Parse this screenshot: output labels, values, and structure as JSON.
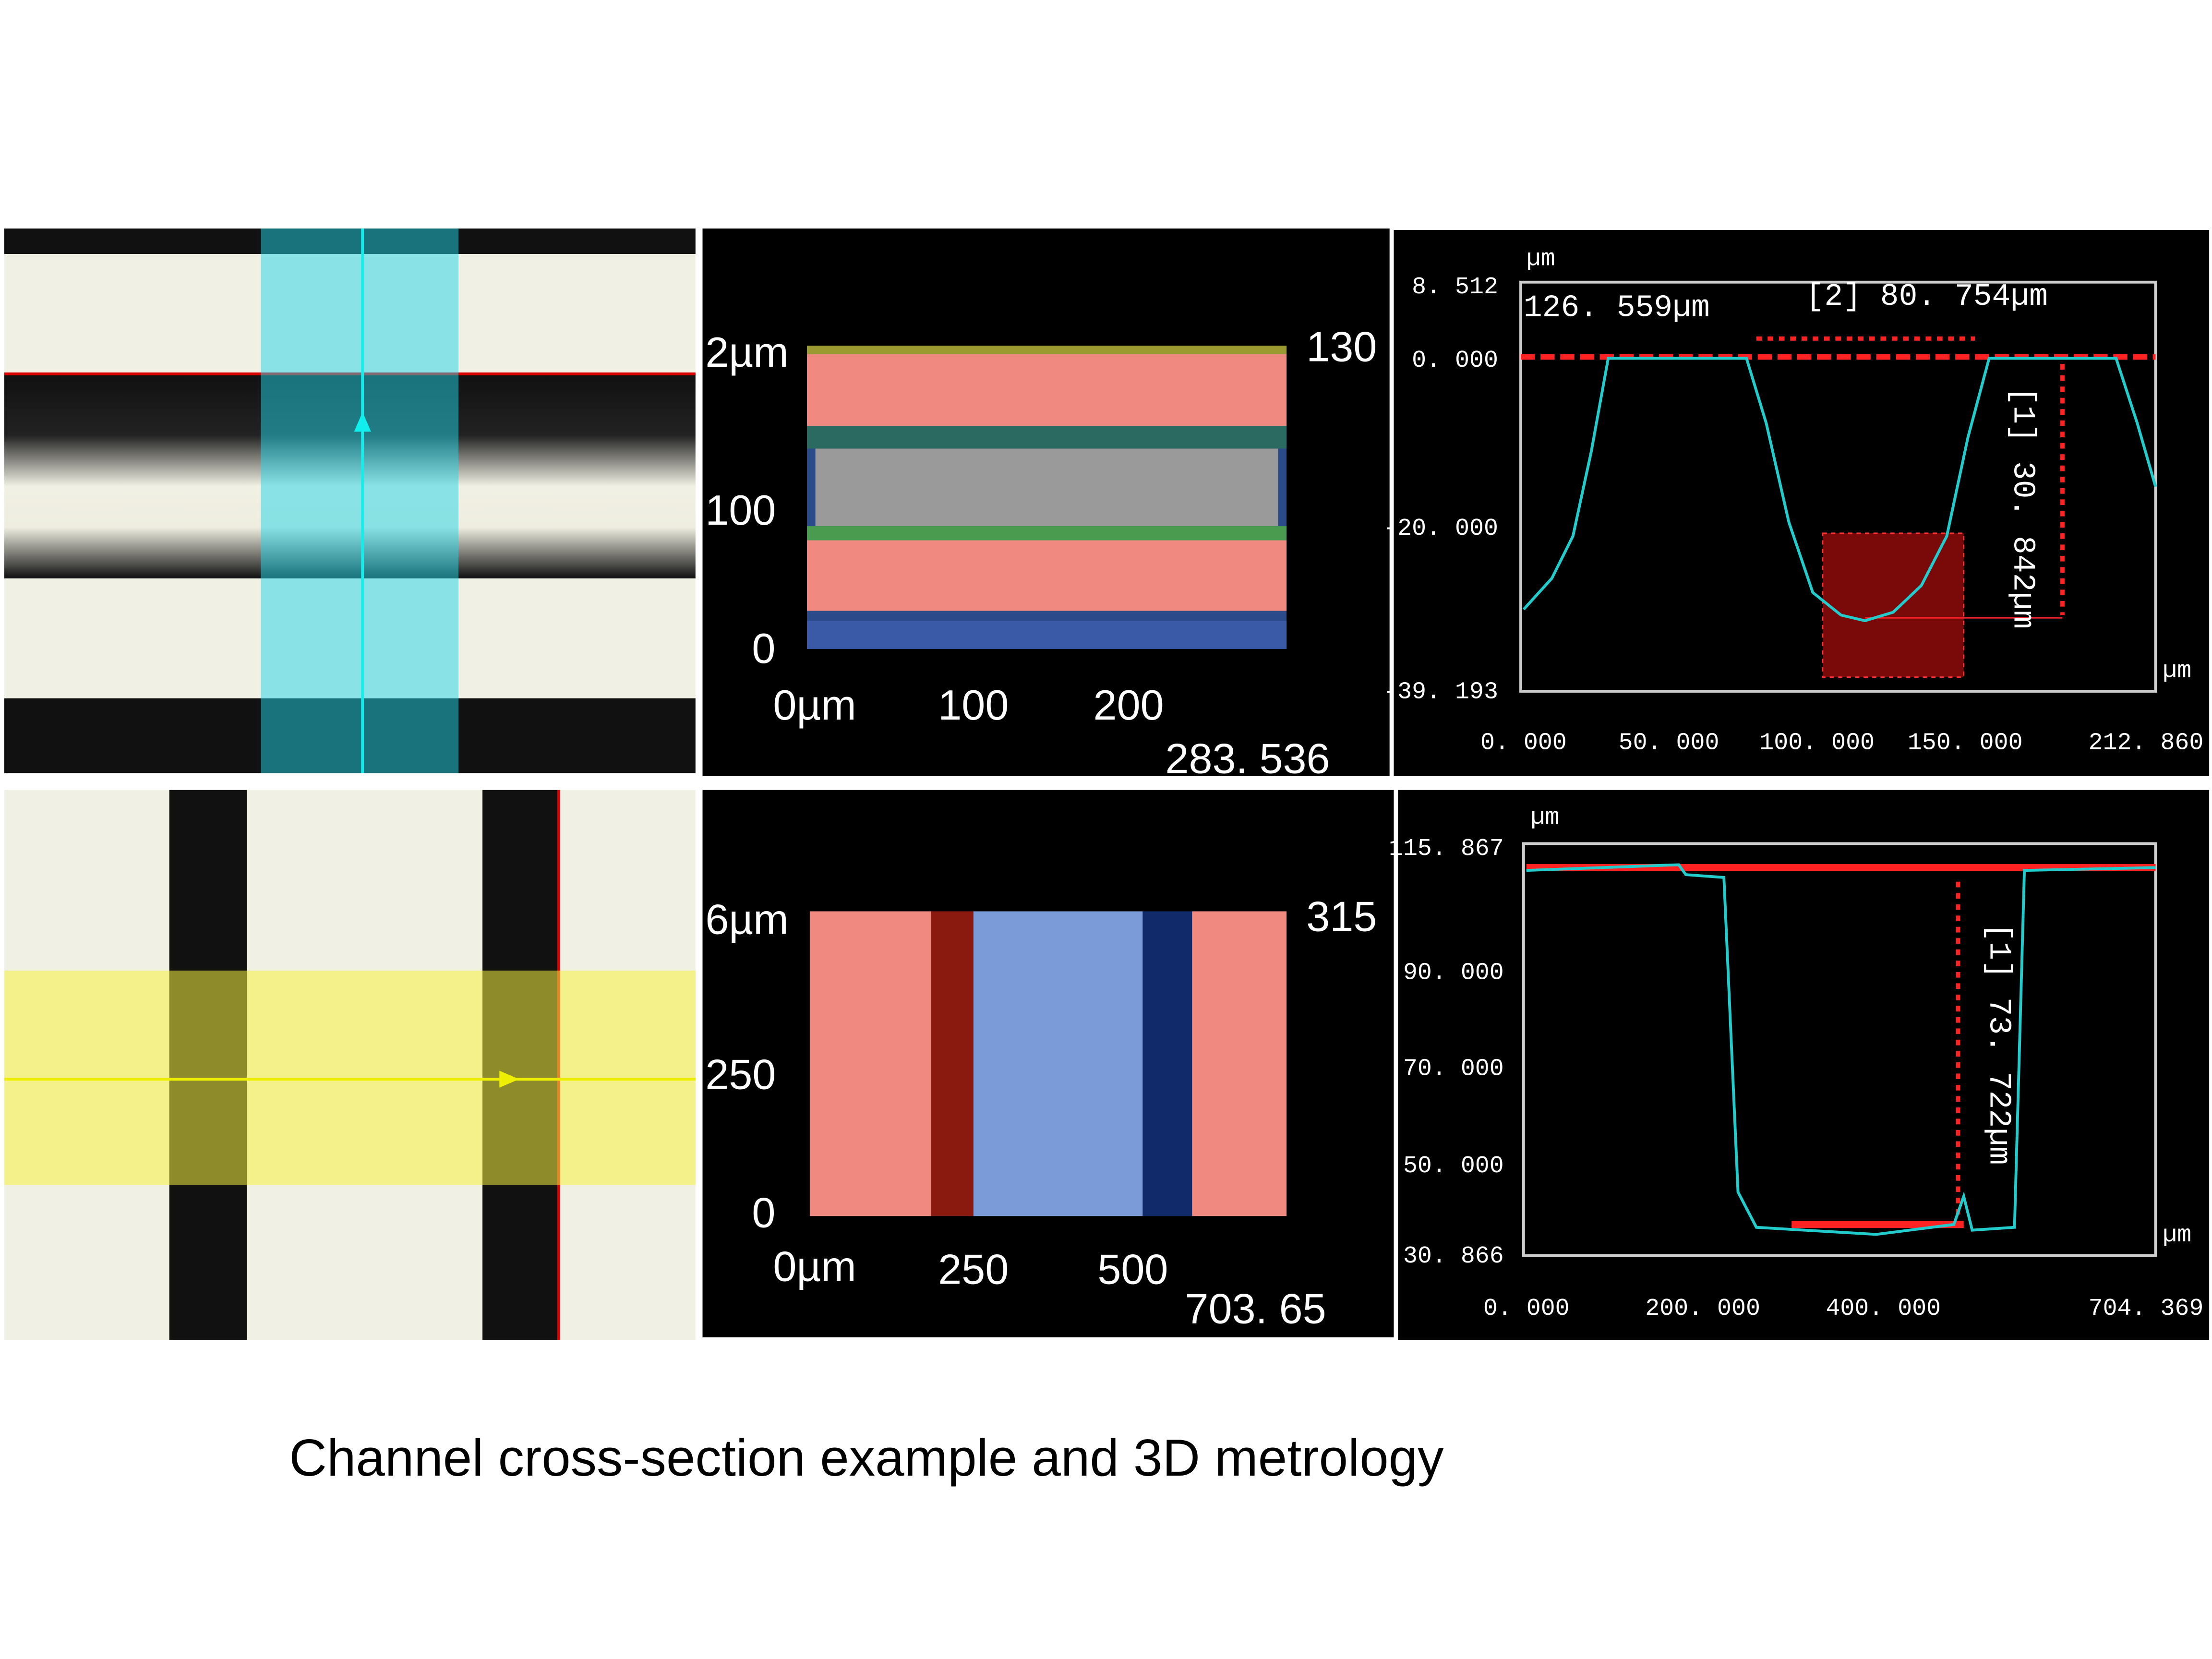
{
  "top_row": {
    "height_map": {
      "y_labels": [
        "2µm",
        "100",
        "0"
      ],
      "x_labels": [
        "0µm",
        "100",
        "200"
      ],
      "x_end": "283. 536",
      "z_label": "130"
    },
    "profile": {
      "y_unit": "µm",
      "y_labels": [
        "8. 512",
        "0. 000",
        "-20. 000",
        "-39. 193"
      ],
      "x_labels": [
        "0. 000",
        "50. 000",
        "100. 000",
        "150. 000",
        "212. 860"
      ],
      "x_unit": "µm",
      "annotations": [
        "126. 559µm",
        "[2] 80. 754µm",
        "[1] 30. 842µm"
      ]
    }
  },
  "bottom_row": {
    "height_map": {
      "y_labels": [
        "6µm",
        "250",
        "0"
      ],
      "x_labels": [
        "0µm",
        "250",
        "500"
      ],
      "x_end": "703. 65",
      "z_label": "315"
    },
    "profile": {
      "y_unit": "µm",
      "y_labels": [
        "115. 867",
        "90. 000",
        "70. 000",
        "50. 000",
        "30. 866"
      ],
      "x_labels": [
        "0. 000",
        "200. 000",
        "400. 000",
        "704. 369"
      ],
      "x_unit": "µm",
      "annotations": [
        "[1] 73. 722µm"
      ]
    }
  },
  "caption": "Channel cross-section example and 3D metrology"
}
